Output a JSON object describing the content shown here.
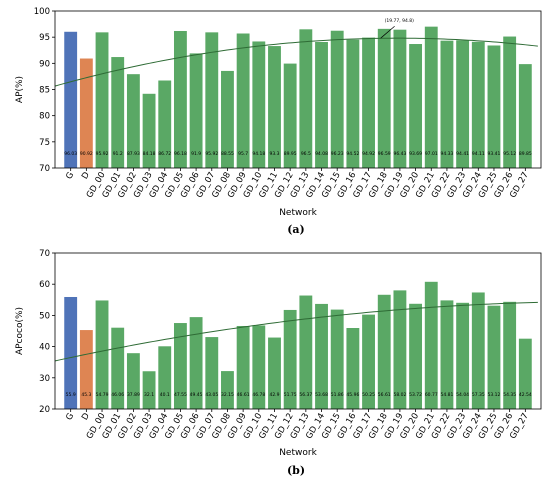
{
  "chart_data": [
    {
      "type": "bar",
      "panel_label": "(a)",
      "xlabel": "Network",
      "ylabel": "AP(%)",
      "ylim": [
        70,
        100
      ],
      "yticks": [
        70,
        75,
        80,
        85,
        90,
        95,
        100
      ],
      "grid": false,
      "categories": [
        "G",
        "D",
        "GD_00",
        "GD_01",
        "GD_02",
        "GD_03",
        "GD_04",
        "GD_05",
        "GD_06",
        "GD_07",
        "GD_08",
        "GD_09",
        "GD_10",
        "GD_11",
        "GD_12",
        "GD_13",
        "GD_14",
        "GD_15",
        "GD_16",
        "GD_17",
        "GD_18",
        "GD_19",
        "GD_20",
        "GD_21",
        "GD_22",
        "GD_23",
        "GD_24",
        "GD_25",
        "GD_26",
        "GD_27"
      ],
      "values": [
        96.03,
        90.92,
        95.92,
        91.2,
        87.93,
        84.18,
        86.72,
        96.18,
        91.9,
        95.92,
        88.55,
        95.7,
        94.18,
        93.3,
        89.95,
        96.5,
        94.08,
        96.23,
        94.52,
        94.92,
        96.59,
        96.43,
        93.69,
        97.01,
        94.33,
        94.41,
        94.11,
        93.41,
        95.12,
        89.85
      ],
      "value_labels": [
        "96.03",
        "90.92",
        "95.92",
        "91.2",
        "87.93",
        "84.18",
        "86.72",
        "96.18",
        "91.9",
        "95.92",
        "88.55",
        "95.7",
        "94.18",
        "93.3",
        "89.95",
        "96.5",
        "94.08",
        "96.23",
        "94.52",
        "94.92",
        "96.59",
        "96.43",
        "93.69",
        "97.01",
        "94.33",
        "94.41",
        "94.11",
        "93.41",
        "95.12",
        "89.85"
      ],
      "bar_colors": [
        "#4f73b8",
        "#de8553",
        "#5aa865",
        "#5aa865",
        "#5aa865",
        "#5aa865",
        "#5aa865",
        "#5aa865",
        "#5aa865",
        "#5aa865",
        "#5aa865",
        "#5aa865",
        "#5aa865",
        "#5aa865",
        "#5aa865",
        "#5aa865",
        "#5aa865",
        "#5aa865",
        "#5aa865",
        "#5aa865",
        "#5aa865",
        "#5aa865",
        "#5aa865",
        "#5aa865",
        "#5aa865",
        "#5aa865",
        "#5aa865",
        "#5aa865",
        "#5aa865",
        "#5aa865"
      ],
      "trend": {
        "type": "quadratic",
        "color": "#2e6b35",
        "points": [
          [
            -1,
            85.5
          ],
          [
            6.5,
            91.2
          ],
          [
            15,
            94.05
          ],
          [
            21.5,
            94.6
          ],
          [
            29.5,
            93.5
          ]
        ]
      },
      "annotation": {
        "text": "(19.77, 94.8)",
        "x": 19.77,
        "y": 94.8
      }
    },
    {
      "type": "bar",
      "panel_label": "(b)",
      "xlabel": "Network",
      "ylabel": "APcoco(%)",
      "ylim": [
        20,
        70
      ],
      "yticks": [
        20,
        30,
        40,
        50,
        60,
        70
      ],
      "grid": false,
      "categories": [
        "G",
        "D",
        "GD_00",
        "GD_01",
        "GD_02",
        "GD_03",
        "GD_04",
        "GD_05",
        "GD_06",
        "GD_07",
        "GD_08",
        "GD_09",
        "GD_10",
        "GD_11",
        "GD_12",
        "GD_13",
        "GD_14",
        "GD_15",
        "GD_16",
        "GD_17",
        "GD_18",
        "GD_19",
        "GD_20",
        "GD_21",
        "GD_22",
        "GD_23",
        "GD_24",
        "GD_25",
        "GD_26",
        "GD_27"
      ],
      "values": [
        55.9,
        45.3,
        54.79,
        46.06,
        37.89,
        32.1,
        40.1,
        47.55,
        49.45,
        43.05,
        32.15,
        46.61,
        46.78,
        42.9,
        51.75,
        56.37,
        53.68,
        51.86,
        45.96,
        50.25,
        56.61,
        58.02,
        53.72,
        60.77,
        54.81,
        54.04,
        57.35,
        53.12,
        54.35,
        42.54
      ],
      "value_labels": [
        "55.9",
        "45.3",
        "54.79",
        "46.06",
        "37.89",
        "32.1",
        "40.1",
        "47.55",
        "49.45",
        "43.05",
        "32.15",
        "46.61",
        "46.78",
        "42.9",
        "51.75",
        "56.37",
        "53.68",
        "51.86",
        "45.96",
        "50.25",
        "56.61",
        "58.02",
        "53.72",
        "60.77",
        "54.81",
        "54.04",
        "57.35",
        "53.12",
        "54.35",
        "42.54"
      ],
      "bar_colors": [
        "#4f73b8",
        "#de8553",
        "#5aa865",
        "#5aa865",
        "#5aa865",
        "#5aa865",
        "#5aa865",
        "#5aa865",
        "#5aa865",
        "#5aa865",
        "#5aa865",
        "#5aa865",
        "#5aa865",
        "#5aa865",
        "#5aa865",
        "#5aa865",
        "#5aa865",
        "#5aa865",
        "#5aa865",
        "#5aa865",
        "#5aa865",
        "#5aa865",
        "#5aa865",
        "#5aa865",
        "#5aa865",
        "#5aa865",
        "#5aa865",
        "#5aa865",
        "#5aa865",
        "#5aa865"
      ],
      "trend": {
        "type": "quadratic",
        "color": "#2e6b35",
        "points": [
          [
            -1,
            35.3
          ],
          [
            6.5,
            43.0
          ],
          [
            15,
            48.7
          ],
          [
            21.5,
            52.0
          ],
          [
            29.5,
            54.2
          ]
        ]
      }
    }
  ]
}
